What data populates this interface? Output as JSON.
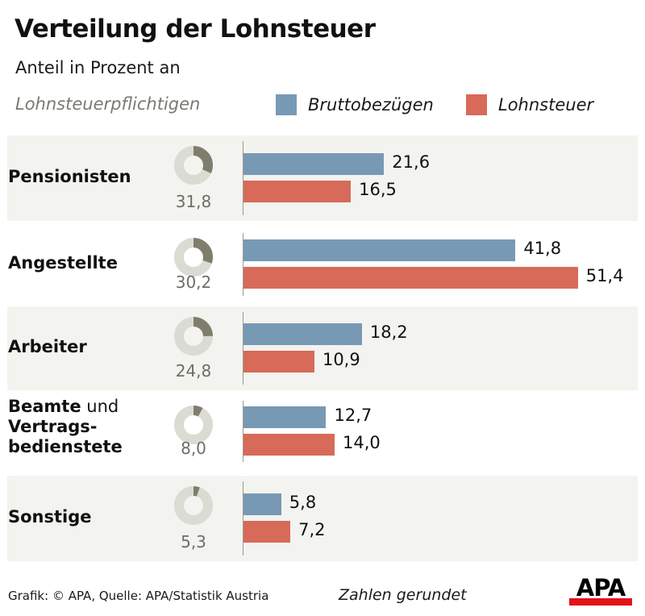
{
  "header": {
    "title": "Verteilung der Lohnsteuer",
    "subtitle_line1": "Anteil in Prozent an",
    "subtitle_line2": "Lohnsteuerpflichtigen"
  },
  "legend": [
    {
      "label": "Bruttobezügen",
      "color": "#7899b4"
    },
    {
      "label": "Lohnsteuer",
      "color": "#d76a58"
    }
  ],
  "footer": {
    "source": "Grafik: © APA, Quelle: APA/Statistik Austria",
    "note": "Zahlen gerundet",
    "logo": "APA"
  },
  "colors": {
    "bruttobezuege": "#7899b4",
    "lohnsteuer": "#d76a58",
    "donut_fill": "#7f7e6c",
    "donut_track": "#dcdbd3",
    "band_shade": "#f3f3ef"
  },
  "chart_data": {
    "type": "bar",
    "orientation": "horizontal",
    "title": "Verteilung der Lohnsteuer",
    "subtitle": "Anteil in Prozent an",
    "categories": [
      "Pensionisten",
      "Angestellte",
      "Arbeiter",
      "Beamte und Vertragsbedienstete",
      "Sonstige"
    ],
    "category_labels": [
      {
        "bold": "Pensionisten",
        "normal": ""
      },
      {
        "bold": "Angestellte",
        "normal": ""
      },
      {
        "bold": "Arbeiter",
        "normal": ""
      },
      {
        "bold": "Beamte",
        "normal": " und",
        "line2": "Vertrags-",
        "line3": "bedienstete"
      },
      {
        "bold": "Sonstige",
        "normal": ""
      }
    ],
    "series": [
      {
        "name": "Bruttobezügen",
        "values": [
          21.6,
          41.8,
          18.2,
          12.7,
          5.8
        ],
        "labels": [
          "21,6",
          "41,8",
          "18,2",
          "12,7",
          "5,8"
        ]
      },
      {
        "name": "Lohnsteuer",
        "values": [
          16.5,
          51.4,
          10.9,
          14.0,
          7.2
        ],
        "labels": [
          "16,5",
          "51,4",
          "10,9",
          "14,0",
          "7,2"
        ]
      }
    ],
    "donut_series": {
      "name": "Lohnsteuerpflichtigen",
      "values": [
        31.8,
        30.2,
        24.8,
        8.0,
        5.3
      ],
      "labels": [
        "31,8",
        "30,2",
        "24,8",
        "8,0",
        "5,3"
      ]
    },
    "xlim": [
      0,
      55
    ],
    "unit": "%",
    "grid": false,
    "legend_position": "top-right"
  }
}
